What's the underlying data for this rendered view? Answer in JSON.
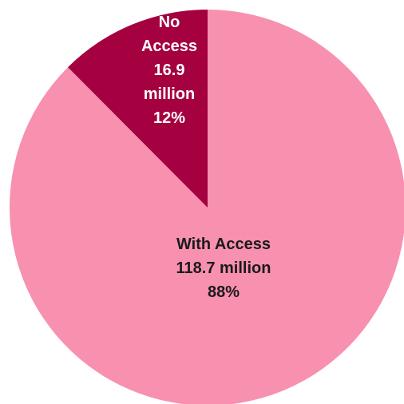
{
  "chart_data": {
    "type": "pie",
    "title": "",
    "slices": [
      {
        "name": "With Access",
        "value": 118.7,
        "value_label": "118.7 million",
        "percent_label": "88%",
        "color": "#f890b0",
        "label_color": "#1a1a1a"
      },
      {
        "name": "No Access",
        "value": 16.9,
        "value_label": "16.9 million",
        "percent_label": "12%",
        "color": "#a50040",
        "label_color": "#ffffff"
      }
    ],
    "start_angle": "12 o'clock",
    "direction": "clockwise",
    "legend": "none",
    "labels": "inside slices"
  }
}
